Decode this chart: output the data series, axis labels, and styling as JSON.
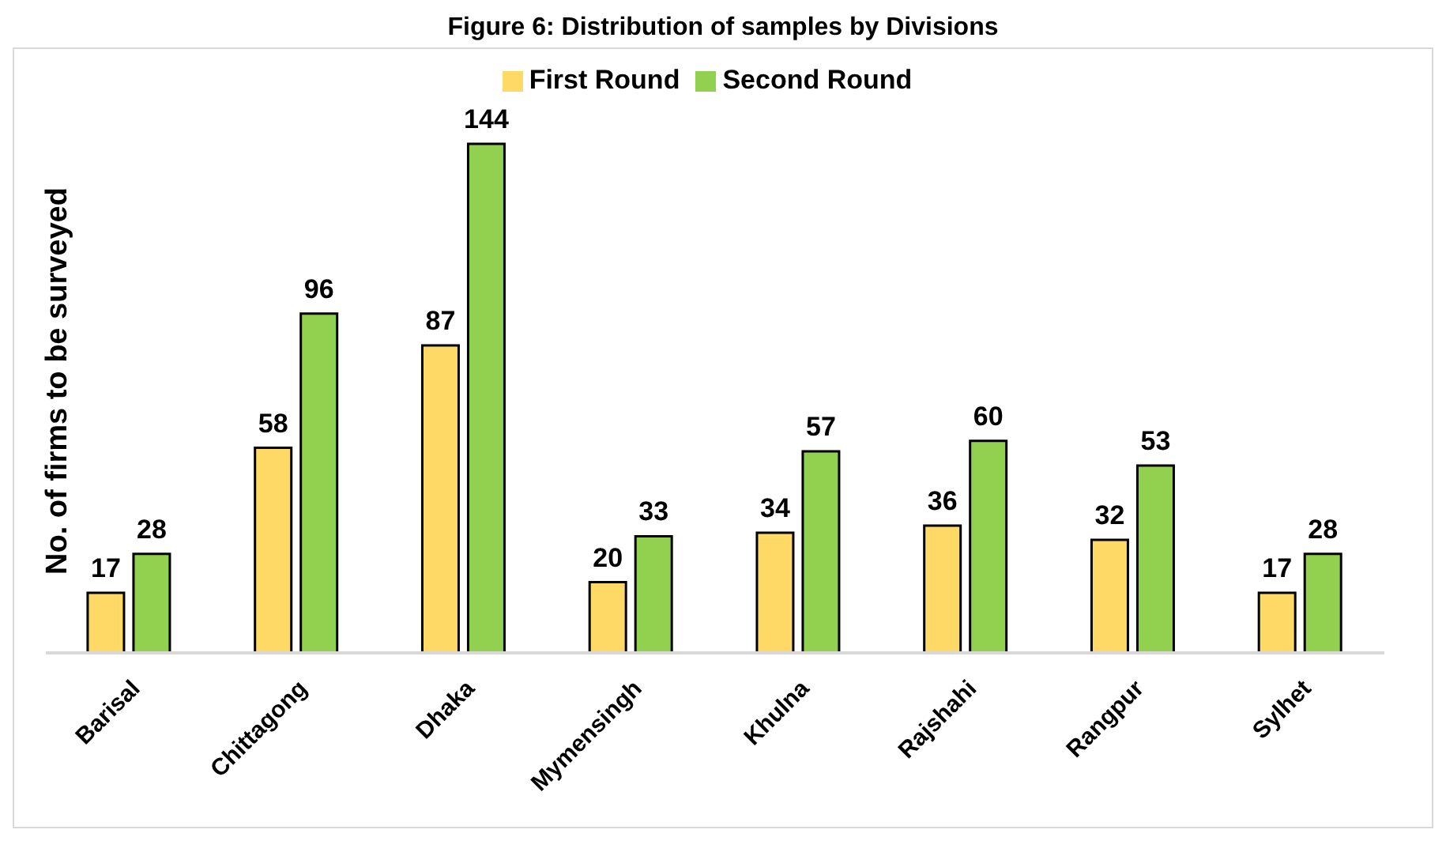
{
  "chart_data": {
    "type": "bar",
    "title": "Figure 6: Distribution of samples by Divisions",
    "ylabel": "No. of firms to be surveyed",
    "categories": [
      "Barisal",
      "Chittagong",
      "Dhaka",
      "Mymensingh",
      "Khulna",
      "Rajshahi",
      "Rangpur",
      "Sylhet"
    ],
    "series": [
      {
        "name": "First Round",
        "color": "#ffd966",
        "values": [
          17,
          58,
          87,
          20,
          34,
          36,
          32,
          17
        ]
      },
      {
        "name": "Second Round",
        "color": "#92d050",
        "values": [
          28,
          96,
          144,
          33,
          57,
          60,
          53,
          28
        ]
      }
    ],
    "data_labels": true,
    "legend": "top",
    "grid": false
  }
}
